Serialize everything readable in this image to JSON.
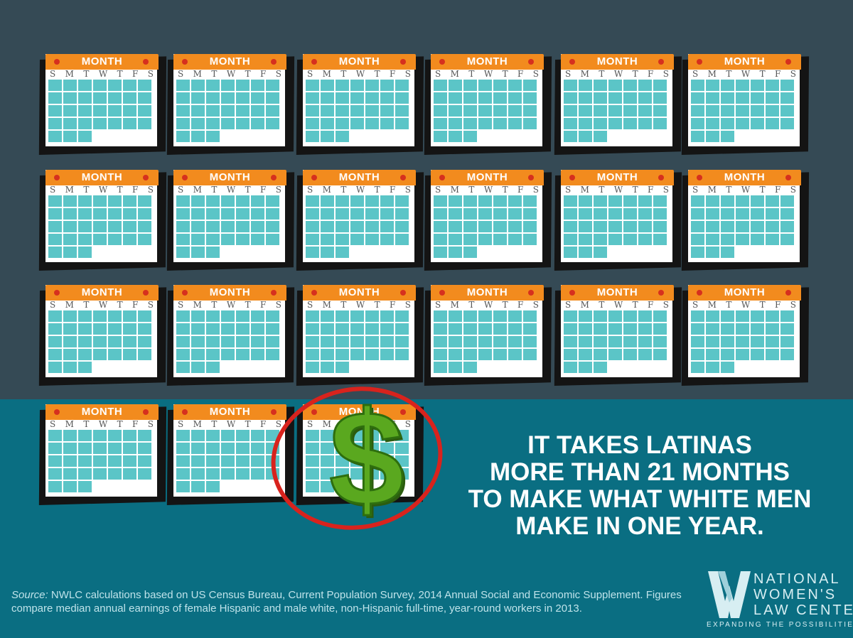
{
  "calendar": {
    "month_label": "MONTH",
    "weekdays": [
      "S",
      "M",
      "T",
      "W",
      "T",
      "F",
      "S"
    ],
    "count": 21,
    "header_color": "#f28b1e",
    "cell_color": "#5bc5c7"
  },
  "dollar": {
    "symbol": "$",
    "color": "#5aa81f",
    "circle_color": "#d8231d"
  },
  "headline": {
    "line1": "IT TAKES LATINAS",
    "line2": "MORE THAN 21 MONTHS",
    "line3": "TO MAKE WHAT WHITE MEN",
    "line4": "MAKE IN ONE YEAR."
  },
  "source": {
    "label": "Source:",
    "text": " NWLC calculations based on US Census Bureau, Current Population Survey, 2014 Annual Social and Economic Supplement.  Figures compare median annual earnings of female Hispanic and male white, non-Hispanic full-time, year-round workers in 2013."
  },
  "logo": {
    "line1": "NATIONAL",
    "line2": "WOMEN'S",
    "line3": "LAW CENTER",
    "tagline": "EXPANDING THE POSSIBILITIES"
  },
  "colors": {
    "top_bg": "#354a55",
    "bottom_bg": "#0a6e82"
  }
}
